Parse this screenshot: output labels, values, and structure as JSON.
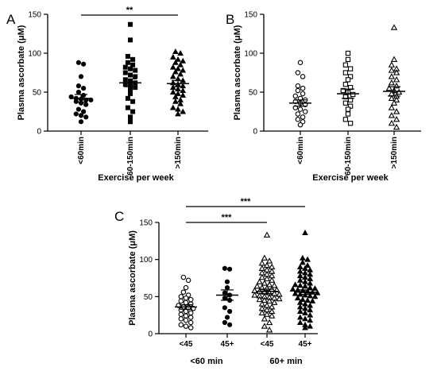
{
  "chart_data": [
    {
      "type": "scatter",
      "panel_label": "A",
      "ylabel": "Plasma ascorbate (μM)",
      "xlabel": "Exercise per week",
      "ylim": [
        0,
        150
      ],
      "yticks": [
        "0",
        "50",
        "100",
        "150"
      ],
      "categories": [
        "<60min",
        "60-150min",
        ">150min"
      ],
      "markers": [
        "filled-circle",
        "filled-square",
        "filled-triangle"
      ],
      "means": [
        42,
        62,
        61
      ],
      "sem": [
        5,
        5,
        4
      ],
      "groups": [
        [
          88,
          86,
          70,
          58,
          55,
          50,
          46,
          44,
          42,
          41,
          40,
          40,
          38,
          36,
          34,
          28,
          25,
          22,
          20,
          18,
          12
        ],
        [
          137,
          117,
          96,
          92,
          88,
          85,
          82,
          80,
          78,
          75,
          72,
          70,
          66,
          64,
          62,
          60,
          58,
          56,
          54,
          48,
          42,
          38,
          30,
          25,
          18,
          12
        ],
        [
          102,
          100,
          95,
          92,
          90,
          88,
          85,
          82,
          80,
          78,
          76,
          73,
          70,
          67,
          65,
          62,
          60,
          58,
          56,
          54,
          52,
          50,
          48,
          46,
          44,
          40,
          38,
          35,
          30,
          28,
          25,
          22
        ]
      ],
      "significance": [
        {
          "from": 0,
          "to": 2,
          "label": "**"
        }
      ]
    },
    {
      "type": "scatter",
      "panel_label": "B",
      "ylabel": "Plasma ascorbate (μM)",
      "xlabel": "Exercise per week",
      "ylim": [
        0,
        150
      ],
      "yticks": [
        "0",
        "50",
        "100",
        "150"
      ],
      "categories": [
        "<60min",
        "60-150min",
        ">150min"
      ],
      "markers": [
        "open-circle",
        "open-square",
        "open-triangle"
      ],
      "means": [
        36,
        48,
        51
      ],
      "sem": [
        4,
        6,
        6
      ],
      "groups": [
        [
          88,
          75,
          70,
          58,
          55,
          52,
          48,
          45,
          42,
          40,
          38,
          36,
          34,
          30,
          28,
          25,
          22,
          18,
          15,
          12,
          8
        ],
        [
          100,
          92,
          85,
          80,
          75,
          70,
          66,
          60,
          56,
          52,
          50,
          47,
          44,
          40,
          36,
          32,
          28,
          22,
          15,
          10
        ],
        [
          133,
          92,
          85,
          80,
          78,
          75,
          70,
          66,
          62,
          58,
          55,
          52,
          50,
          48,
          45,
          42,
          40,
          36,
          30,
          25,
          20,
          15,
          10,
          5
        ]
      ],
      "significance": []
    },
    {
      "type": "scatter",
      "panel_label": "C",
      "ylabel": "Plasma ascorbate (μM)",
      "xlabel": "",
      "ylim": [
        0,
        150
      ],
      "yticks": [
        "0",
        "50",
        "100",
        "150"
      ],
      "categories": [
        "<45",
        "45+",
        "<45",
        "45+"
      ],
      "group_labels": [
        "<60 min",
        "60+ min"
      ],
      "markers": [
        "open-circle",
        "filled-circle",
        "open-triangle",
        "filled-triangle"
      ],
      "means": [
        36,
        52,
        57,
        56
      ],
      "sem": [
        3,
        7,
        3,
        3
      ],
      "groups": [
        [
          76,
          72,
          62,
          56,
          52,
          50,
          48,
          46,
          44,
          42,
          40,
          38,
          36,
          35,
          34,
          32,
          30,
          28,
          26,
          24,
          22,
          20,
          18,
          15,
          12,
          10,
          8
        ],
        [
          88,
          87,
          70,
          62,
          55,
          52,
          48,
          45,
          35,
          30,
          22,
          15,
          12
        ],
        [
          133,
          102,
          98,
          95,
          92,
          90,
          88,
          86,
          84,
          82,
          80,
          78,
          76,
          74,
          72,
          70,
          68,
          66,
          65,
          64,
          62,
          61,
          60,
          59,
          58,
          57,
          56,
          55,
          54,
          53,
          52,
          51,
          50,
          49,
          48,
          47,
          46,
          45,
          44,
          42,
          40,
          38,
          36,
          34,
          32,
          30,
          28,
          26,
          24,
          20,
          15,
          10,
          5
        ],
        [
          136,
          102,
          100,
          96,
          92,
          90,
          88,
          86,
          84,
          82,
          80,
          78,
          76,
          74,
          72,
          70,
          68,
          66,
          65,
          64,
          62,
          61,
          60,
          59,
          58,
          57,
          56,
          55,
          54,
          53,
          52,
          51,
          50,
          48,
          46,
          45,
          44,
          42,
          40,
          38,
          36,
          34,
          32,
          30,
          28,
          25,
          22,
          20,
          18,
          15,
          12,
          10,
          8
        ]
      ],
      "significance": [
        {
          "from": 0,
          "to": 2,
          "label": "***"
        },
        {
          "from": 0,
          "to": 3,
          "label": "***"
        }
      ]
    }
  ]
}
